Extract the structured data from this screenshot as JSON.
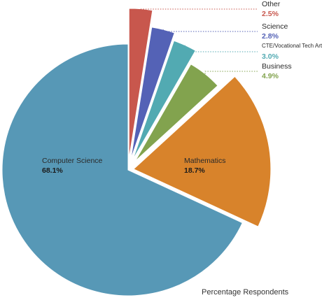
{
  "chart_data": {
    "type": "pie",
    "style": "exploded",
    "caption": "Percentage Respondents",
    "slices": [
      {
        "label": "Computer Science",
        "value": 68.1,
        "display": "68.1%",
        "color": "#5798b6",
        "label_style": "inside"
      },
      {
        "label": "Mathematics",
        "value": 18.7,
        "display": "18.7%",
        "color": "#d8832b",
        "label_style": "inside"
      },
      {
        "label": "Business",
        "value": 4.9,
        "display": "4.9%",
        "color": "#82a34e",
        "label_style": "callout"
      },
      {
        "label": "CTE/Vocational Tech Arts",
        "value": 3.0,
        "display": "3.0%",
        "color": "#52aab2",
        "label_style": "callout"
      },
      {
        "label": "Science",
        "value": 2.8,
        "display": "2.8%",
        "color": "#5462b6",
        "label_style": "callout"
      },
      {
        "label": "Other",
        "value": 2.5,
        "display": "2.5%",
        "color": "#c8574d",
        "label_style": "callout"
      }
    ]
  }
}
